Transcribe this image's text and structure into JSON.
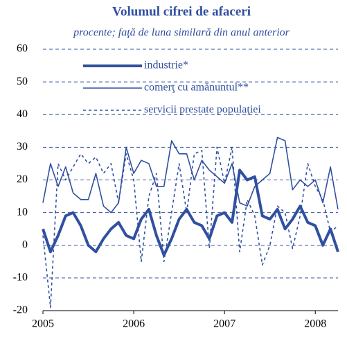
{
  "chart_data": {
    "type": "line",
    "title": "Volumul cifrei de afaceri",
    "subtitle": "procente; faţă de luna similară din anul anterior",
    "x": [
      2005,
      2005.083,
      2005.167,
      2005.25,
      2005.333,
      2005.417,
      2005.5,
      2005.583,
      2005.667,
      2005.75,
      2005.833,
      2005.917,
      2006,
      2006.083,
      2006.167,
      2006.25,
      2006.333,
      2006.417,
      2006.5,
      2006.583,
      2006.667,
      2006.75,
      2006.833,
      2006.917,
      2007,
      2007.083,
      2007.167,
      2007.25,
      2007.333,
      2007.417,
      2007.5,
      2007.583,
      2007.667,
      2007.75,
      2007.833,
      2007.917,
      2008,
      2008.083,
      2008.167,
      2008.25
    ],
    "series": [
      {
        "name": "industrie*",
        "color": "#3050a0",
        "line_width": 4,
        "dash": "none",
        "values": [
          5,
          -2,
          3,
          9,
          10,
          6,
          0,
          -2,
          2,
          5,
          7,
          3,
          2,
          8,
          11,
          3,
          -3,
          2,
          8,
          11,
          7,
          6,
          2,
          9,
          10,
          7,
          23,
          20,
          21,
          9,
          8,
          11,
          5,
          8,
          12,
          7,
          6,
          0,
          5,
          -2
        ]
      },
      {
        "name": "comerţ cu amănuntul**",
        "color": "#3050a0",
        "line_width": 1.6,
        "dash": "none",
        "values": [
          13,
          25,
          18,
          24,
          16,
          14,
          14,
          22,
          12,
          10,
          13,
          30,
          22,
          26,
          25,
          18,
          18,
          32,
          28,
          28,
          20,
          26,
          23,
          21,
          19,
          25,
          13,
          12,
          18,
          20,
          22,
          33,
          32,
          17,
          20,
          18,
          20,
          13,
          24,
          11
        ]
      },
      {
        "name": "servicii prestate populaţiei",
        "color": "#3050a0",
        "line_width": 1.6,
        "dash": "4 4",
        "values": [
          3,
          -19,
          25,
          20,
          24,
          28,
          25,
          27,
          22,
          25,
          13,
          28,
          20,
          -5,
          15,
          22,
          -5,
          10,
          25,
          10,
          28,
          29,
          -1,
          30,
          19,
          30,
          -2,
          14,
          9,
          -6,
          0,
          12,
          10,
          -1,
          9,
          25,
          18,
          14,
          4,
          6
        ]
      }
    ],
    "xlim": [
      2005,
      2008.25
    ],
    "xticks": [
      2005,
      2006,
      2007,
      2008
    ],
    "ylim": [
      -20,
      60
    ],
    "yticks": [
      -20,
      -10,
      0,
      10,
      20,
      30,
      40,
      50,
      60
    ],
    "grid": true
  }
}
